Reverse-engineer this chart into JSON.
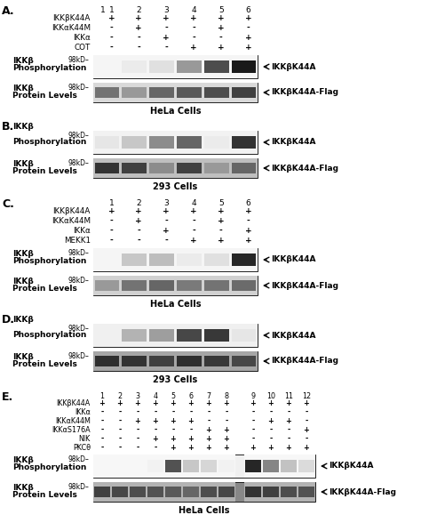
{
  "bg_color": "#ffffff",
  "fig_width": 4.74,
  "fig_height": 5.88,
  "panels": {
    "A": {
      "label": "A.",
      "has_header": true,
      "header_rows": [
        {
          "name": "IKKβK44A",
          "signs": [
            "+",
            "+",
            "+",
            "+",
            "+",
            "+"
          ]
        },
        {
          "name": "IKKαK44M",
          "signs": [
            "-",
            "+",
            "-",
            "-",
            "+",
            "-"
          ]
        },
        {
          "name": "IKKα",
          "signs": [
            "-",
            "-",
            "+",
            "-",
            "-",
            "+"
          ]
        },
        {
          "name": "COT",
          "signs": [
            "-",
            "-",
            "-",
            "+",
            "+",
            "+"
          ]
        }
      ],
      "n_lanes": 6,
      "blot1_intensities": [
        0.04,
        0.08,
        0.12,
        0.4,
        0.7,
        0.9
      ],
      "blot2_intensities": [
        0.55,
        0.4,
        0.6,
        0.65,
        0.7,
        0.75
      ],
      "blot2_bg": 0.15,
      "footer": "HeLa Cells"
    },
    "B": {
      "label": "B.",
      "has_header": false,
      "n_lanes": 6,
      "blot1_intensities": [
        0.1,
        0.22,
        0.45,
        0.6,
        0.08,
        0.8
      ],
      "blot2_intensities": [
        0.8,
        0.75,
        0.45,
        0.75,
        0.4,
        0.6
      ],
      "blot2_bg": 0.2,
      "footer": "293 Cells"
    },
    "C": {
      "label": "C.",
      "has_header": true,
      "header_rows": [
        {
          "name": "IKKβK44A",
          "signs": [
            "+",
            "+",
            "+",
            "+",
            "+",
            "+"
          ]
        },
        {
          "name": "IKKαK44M",
          "signs": [
            "-",
            "+",
            "-",
            "-",
            "+",
            "-"
          ]
        },
        {
          "name": "IKKα",
          "signs": [
            "-",
            "-",
            "+",
            "-",
            "-",
            "+"
          ]
        },
        {
          "name": "MEKK1",
          "signs": [
            "-",
            "-",
            "-",
            "+",
            "+",
            "+"
          ]
        }
      ],
      "n_lanes": 6,
      "blot1_intensities": [
        0.04,
        0.22,
        0.26,
        0.08,
        0.12,
        0.85
      ],
      "blot2_intensities": [
        0.4,
        0.55,
        0.6,
        0.52,
        0.55,
        0.58
      ],
      "blot2_bg": 0.15,
      "footer": "HeLa Cells"
    },
    "D": {
      "label": "D.",
      "has_header": false,
      "n_lanes": 6,
      "blot1_intensities": [
        0.06,
        0.3,
        0.38,
        0.72,
        0.78,
        0.1
      ],
      "blot2_intensities": [
        0.82,
        0.8,
        0.75,
        0.82,
        0.78,
        0.72
      ],
      "blot2_bg": 0.25,
      "footer": "293 Cells"
    },
    "E": {
      "label": "E.",
      "has_header": true,
      "header_rows": [
        {
          "name": "IKKβK44A",
          "signs": [
            "+",
            "+",
            "+",
            "+",
            "+",
            "+",
            "+",
            "+",
            "|",
            "+",
            "+",
            "+",
            "+"
          ]
        },
        {
          "name": "IKKα",
          "signs": [
            "-",
            "-",
            "-",
            "-",
            "-",
            "-",
            "-",
            "-",
            "|",
            "-",
            "-",
            "-",
            "-"
          ]
        },
        {
          "name": "IKKαK44M",
          "signs": [
            "-",
            "-",
            "+",
            "+",
            "+",
            "+",
            "-",
            "-",
            "|",
            "-",
            "+",
            "+",
            "-"
          ]
        },
        {
          "name": "IKKαS176A",
          "signs": [
            "-",
            "-",
            "-",
            "-",
            "-",
            "-",
            "+",
            "+",
            "|",
            "-",
            "-",
            "-",
            "+"
          ]
        },
        {
          "name": "NIK",
          "signs": [
            "-",
            "-",
            "-",
            "+",
            "+",
            "+",
            "+",
            "+",
            "|",
            "-",
            "-",
            "-",
            "-"
          ]
        },
        {
          "name": "PKCθ",
          "signs": [
            "-",
            "-",
            "-",
            "-",
            "+",
            "+",
            "+",
            "+",
            "|",
            "+",
            "+",
            "+",
            "+"
          ]
        }
      ],
      "n_lanes": 12,
      "blot1_intensities": [
        0.03,
        0.03,
        0.03,
        0.05,
        0.68,
        0.22,
        0.16,
        0.05,
        0.85,
        0.48,
        0.24,
        0.14
      ],
      "blot2_intensities": [
        0.75,
        0.72,
        0.7,
        0.68,
        0.65,
        0.6,
        0.7,
        0.72,
        0.8,
        0.75,
        0.7,
        0.68
      ],
      "blot2_bg": 0.25,
      "footer": "HeLa Cells"
    }
  }
}
